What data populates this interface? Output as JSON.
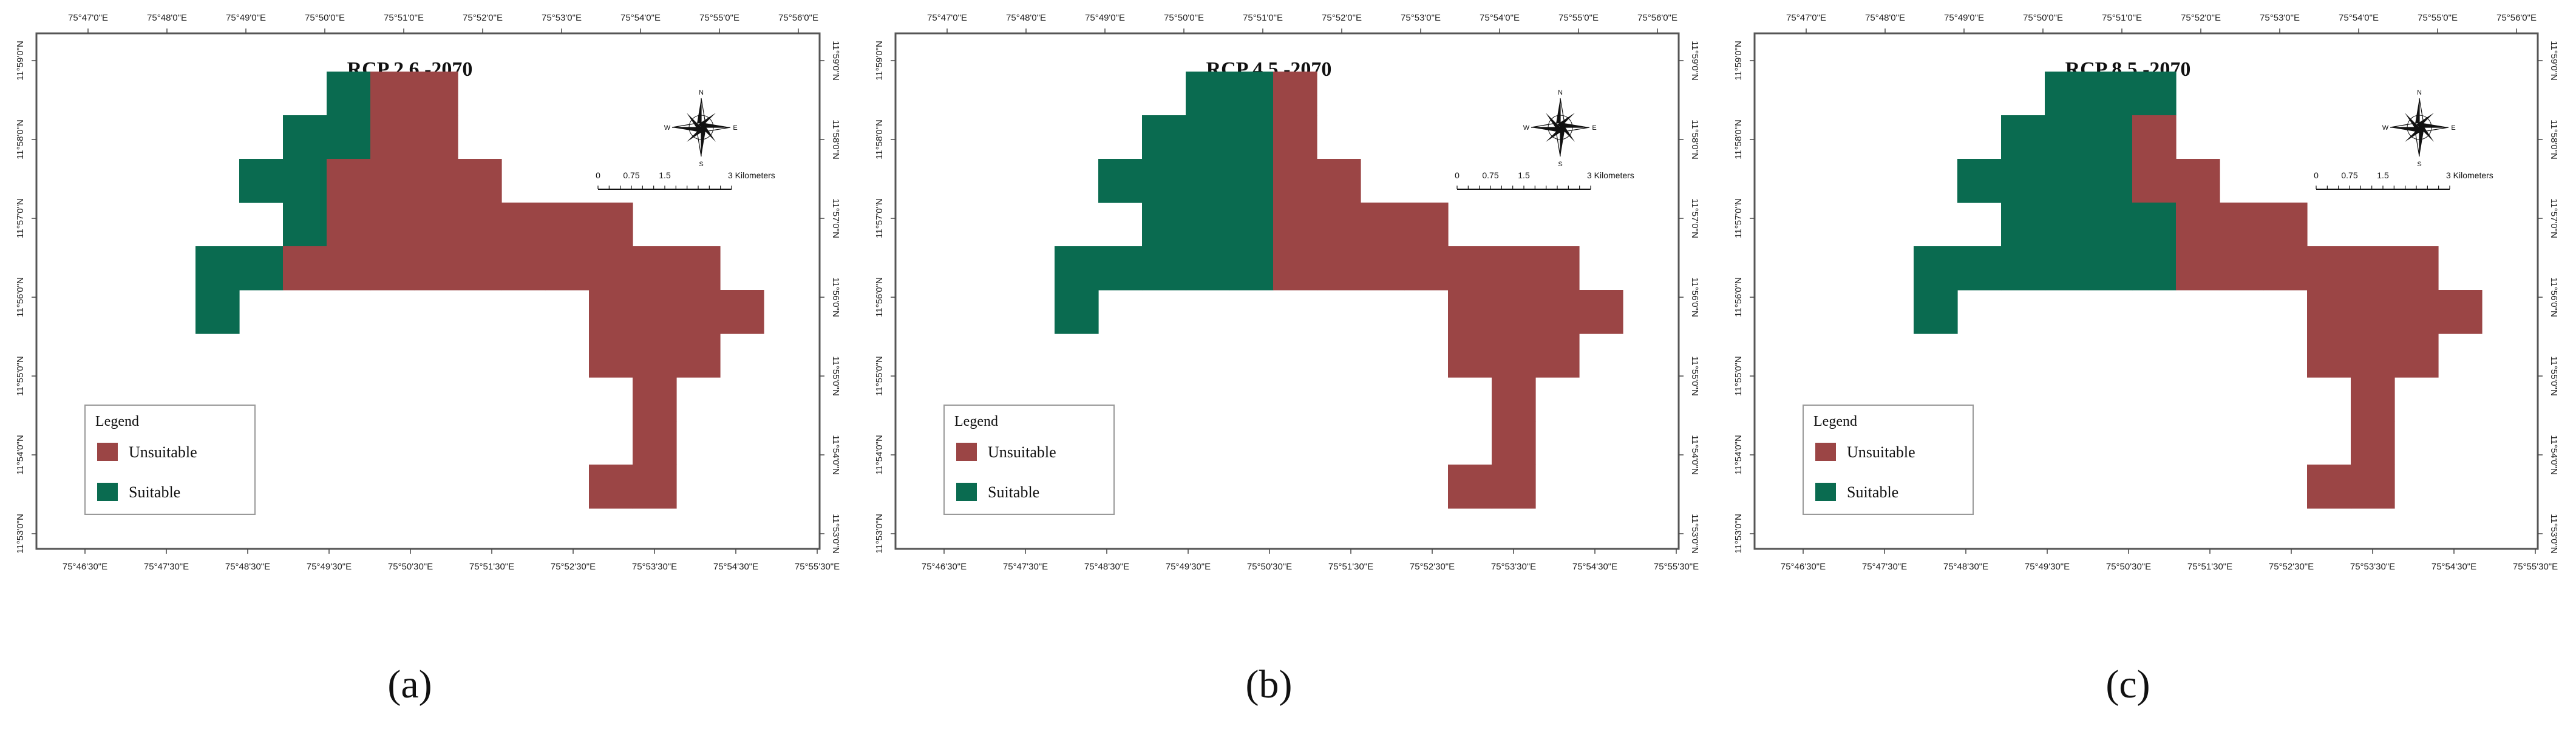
{
  "colors": {
    "unsuitable": "#9b4545",
    "suitable": "#0a6b50",
    "frame": "#555555"
  },
  "top_ticks": [
    "75°47'0\"E",
    "75°48'0\"E",
    "75°49'0\"E",
    "75°50'0\"E",
    "75°51'0\"E",
    "75°52'0\"E",
    "75°53'0\"E",
    "75°54'0\"E",
    "75°55'0\"E",
    "75°56'0\"E"
  ],
  "bottom_ticks": [
    "75°46'30\"E",
    "75°47'30\"E",
    "75°48'30\"E",
    "75°49'30\"E",
    "75°50'30\"E",
    "75°51'30\"E",
    "75°52'30\"E",
    "75°53'30\"E",
    "75°54'30\"E",
    "75°55'30\"E"
  ],
  "left_ticks": [
    "11°59'0\"N",
    "11°58'0\"N",
    "11°57'0\"N",
    "11°56'0\"N",
    "11°55'0\"N",
    "11°54'0\"N",
    "11°53'0\"N"
  ],
  "right_ticks": [
    "11°59'0\"N",
    "11°58'0\"N",
    "11°57'0\"N",
    "11°56'0\"N",
    "11°55'0\"N",
    "11°54'0\"N",
    "11°53'0\"N"
  ],
  "legend": {
    "title": "Legend",
    "items": [
      {
        "label": "Unsuitable",
        "class": "unsuitable"
      },
      {
        "label": "Suitable",
        "class": "suitable"
      }
    ]
  },
  "scale_bar": {
    "labels": [
      "0",
      "0.75",
      "1.5",
      "3 Kilometers"
    ],
    "values_km": [
      0,
      0.75,
      1.5,
      3
    ]
  },
  "compass": {
    "n": "N",
    "s": "S",
    "e": "E",
    "w": "W"
  },
  "maps": [
    {
      "title": "RCP 2.6 -2070",
      "caption": "(a)",
      "rows": [
        "....S##.........",
        "...SS##.........",
        "..SS####........",
        "...S#######.....",
        ".SS##########...",
        ".S........####..",
        "..........###...",
        "...........#....",
        "...........#....",
        "..........##...."
      ]
    },
    {
      "title": "RCP 4.5 -2070",
      "caption": "(b)",
      "rows": [
        "....SS#.........",
        "...SSS#.........",
        "..SSSS##........",
        "...SSS####......",
        ".SSSSS#######...",
        ".S........####..",
        "..........###...",
        "...........#....",
        "...........#....",
        "..........##...."
      ]
    },
    {
      "title": "RCP 8.5 -2070",
      "caption": "(c)",
      "rows": [
        "....SSS.........",
        "...SSS#.........",
        "..SSSS##........",
        "...SSSS###......",
        ".SSSSSS######...",
        ".S........####..",
        "..........###...",
        "...........#....",
        "...........#....",
        "..........##...."
      ]
    }
  ]
}
